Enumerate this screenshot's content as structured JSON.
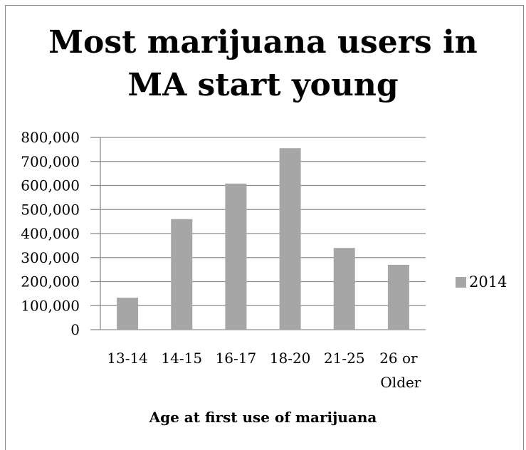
{
  "chart_data": {
    "type": "bar",
    "title_lines": [
      "Most marijuana users in",
      "MA start young"
    ],
    "categories": [
      [
        "13-14"
      ],
      [
        "14-15"
      ],
      [
        "16-17"
      ],
      [
        "18-20"
      ],
      [
        "21-25"
      ],
      [
        "26 or",
        "Older"
      ]
    ],
    "series": [
      {
        "name": "2014",
        "values": [
          133000,
          460000,
          608000,
          755000,
          340000,
          270000
        ],
        "color": "#a6a6a6"
      }
    ],
    "xlabel": "Age at first use of marijuana",
    "ylabel": "",
    "ylim": [
      0,
      800000
    ],
    "yticks": [
      "0",
      "100,000",
      "200,000",
      "300,000",
      "400,000",
      "500,000",
      "600,000",
      "700,000",
      "800,000"
    ],
    "grid": true,
    "legend_position": "right",
    "gridline_color": "#8c8c8c"
  }
}
